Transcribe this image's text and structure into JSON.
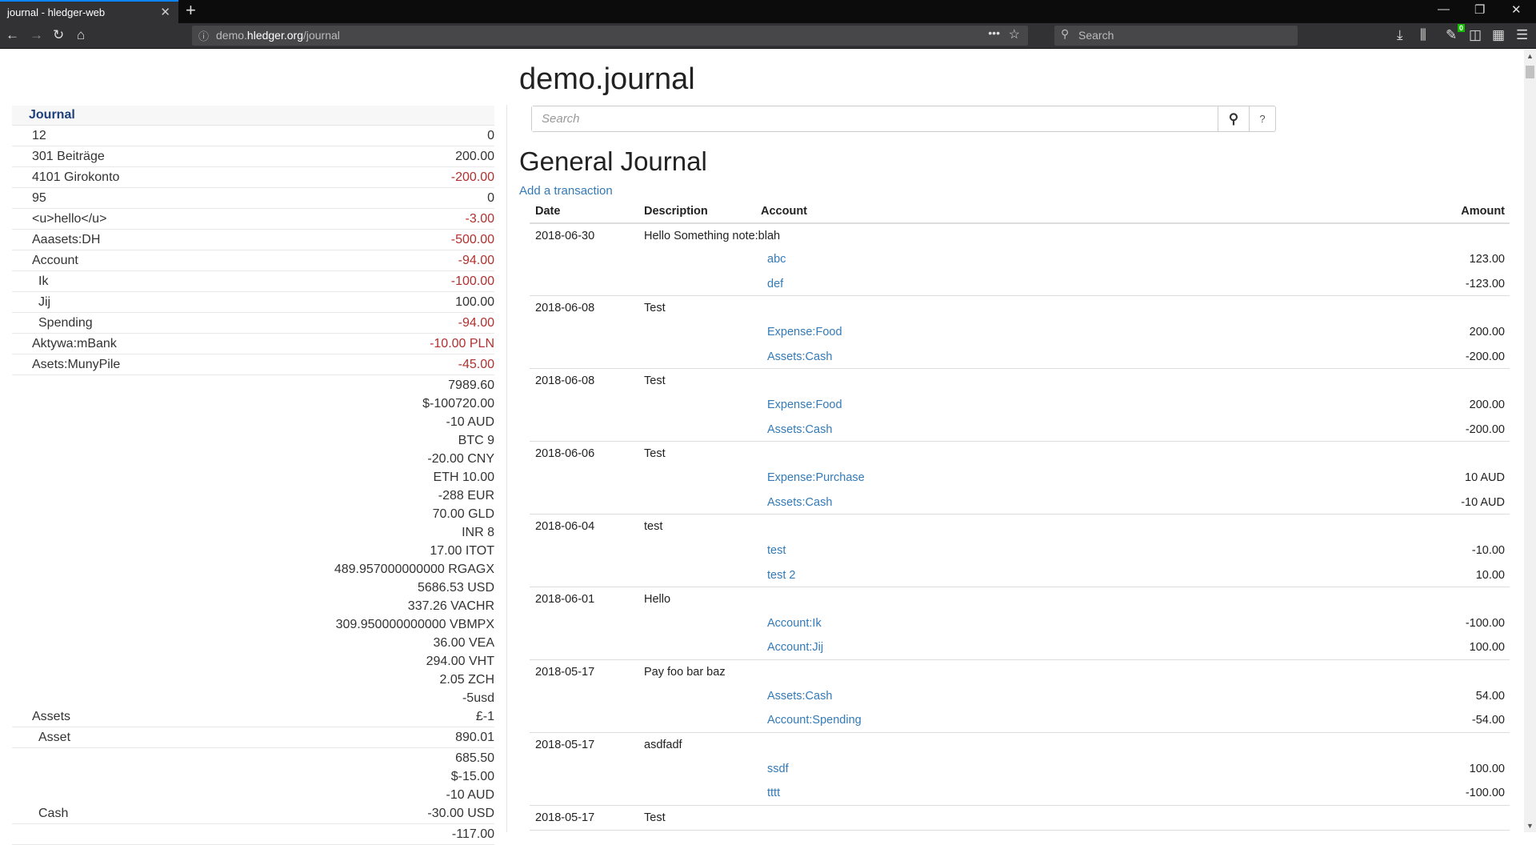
{
  "browser": {
    "tab_title": "journal - hledger-web",
    "url_host_pre": "demo.",
    "url_host": "hledger.org",
    "url_path": "/journal",
    "search_placeholder": "Search",
    "badge": "0"
  },
  "page": {
    "title": "demo.journal",
    "search_placeholder": "Search",
    "help": "?",
    "heading": "General Journal",
    "add_link": "Add a transaction"
  },
  "sidebar": {
    "header": "Journal",
    "rows": [
      {
        "name": "12",
        "indent": 0,
        "amounts": [
          "0"
        ],
        "negative": false
      },
      {
        "name": "301 Beiträge",
        "indent": 0,
        "amounts": [
          "200.00"
        ],
        "negative": false
      },
      {
        "name": "4101 Girokonto",
        "indent": 0,
        "amounts": [
          "-200.00"
        ],
        "negative": true
      },
      {
        "name": "95",
        "indent": 0,
        "amounts": [
          "0"
        ],
        "negative": false
      },
      {
        "name": "<u>hello</u>",
        "indent": 0,
        "amounts": [
          "-3.00"
        ],
        "negative": true
      },
      {
        "name": "Aaasets:DH",
        "indent": 0,
        "amounts": [
          "-500.00"
        ],
        "negative": true
      },
      {
        "name": "Account",
        "indent": 0,
        "amounts": [
          "-94.00"
        ],
        "negative": true
      },
      {
        "name": "Ik",
        "indent": 1,
        "amounts": [
          "-100.00"
        ],
        "negative": true
      },
      {
        "name": "Jij",
        "indent": 1,
        "amounts": [
          "100.00"
        ],
        "negative": false
      },
      {
        "name": "Spending",
        "indent": 1,
        "amounts": [
          "-94.00"
        ],
        "negative": true
      },
      {
        "name": "Aktywa:mBank",
        "indent": 0,
        "amounts": [
          "-10.00 PLN"
        ],
        "negative": true
      },
      {
        "name": "Asets:MunyPile",
        "indent": 0,
        "amounts": [
          "-45.00"
        ],
        "negative": true
      },
      {
        "name": "Assets",
        "indent": 0,
        "amounts": [
          "7989.60",
          "$-100720.00",
          "-10 AUD",
          "BTC 9",
          "-20.00 CNY",
          "ETH 10.00",
          "-288 EUR",
          "70.00 GLD",
          "INR 8",
          "17.00 ITOT",
          "489.957000000000 RGAGX",
          "5686.53 USD",
          "337.26 VACHR",
          "309.950000000000 VBMPX",
          "36.00 VEA",
          "294.00 VHT",
          "2.05 ZCH",
          "-5usd",
          "£-1"
        ],
        "negative": false
      },
      {
        "name": "Asset",
        "indent": 1,
        "amounts": [
          "890.01"
        ],
        "negative": false
      },
      {
        "name": "Cash",
        "indent": 1,
        "amounts": [
          "685.50",
          "$-15.00",
          "-10 AUD",
          "-30.00 USD"
        ],
        "negative": false
      },
      {
        "name": "",
        "indent": 1,
        "amounts": [
          "-117.00"
        ],
        "negative": false
      }
    ]
  },
  "journal": {
    "columns": {
      "date": "Date",
      "description": "Description",
      "account": "Account",
      "amount": "Amount"
    },
    "transactions": [
      {
        "date": "2018-06-30",
        "description": "Hello Something note:blah",
        "postings": [
          {
            "account": "abc",
            "amount": "123.00",
            "negative": false
          },
          {
            "account": "def",
            "amount": "-123.00",
            "negative": true
          }
        ]
      },
      {
        "date": "2018-06-08",
        "description": "Test",
        "postings": [
          {
            "account": "Expense:Food",
            "amount": "200.00",
            "negative": false
          },
          {
            "account": "Assets:Cash",
            "amount": "-200.00",
            "negative": true
          }
        ]
      },
      {
        "date": "2018-06-08",
        "description": "Test",
        "postings": [
          {
            "account": "Expense:Food",
            "amount": "200.00",
            "negative": false
          },
          {
            "account": "Assets:Cash",
            "amount": "-200.00",
            "negative": true
          }
        ]
      },
      {
        "date": "2018-06-06",
        "description": "Test",
        "postings": [
          {
            "account": "Expense:Purchase",
            "amount": "10 AUD",
            "negative": false
          },
          {
            "account": "Assets:Cash",
            "amount": "-10 AUD",
            "negative": true
          }
        ]
      },
      {
        "date": "2018-06-04",
        "description": "test",
        "postings": [
          {
            "account": "test",
            "amount": "-10.00",
            "negative": true
          },
          {
            "account": "test 2",
            "amount": "10.00",
            "negative": false
          }
        ]
      },
      {
        "date": "2018-06-01",
        "description": "Hello",
        "postings": [
          {
            "account": "Account:Ik",
            "amount": "-100.00",
            "negative": true
          },
          {
            "account": "Account:Jij",
            "amount": "100.00",
            "negative": false
          }
        ]
      },
      {
        "date": "2018-05-17",
        "description": "Pay foo bar baz",
        "postings": [
          {
            "account": "Assets:Cash",
            "amount": "54.00",
            "negative": false
          },
          {
            "account": "Account:Spending",
            "amount": "-54.00",
            "negative": true
          }
        ]
      },
      {
        "date": "2018-05-17",
        "description": "asdfadf",
        "postings": [
          {
            "account": "ssdf",
            "amount": "100.00",
            "negative": false
          },
          {
            "account": "tttt",
            "amount": "-100.00",
            "negative": true
          }
        ]
      },
      {
        "date": "2018-05-17",
        "description": "Test",
        "postings": []
      }
    ]
  },
  "colors": {
    "negative": "#b0312f",
    "link": "#337ab7",
    "sidebar_header": "#1f3f7a"
  }
}
